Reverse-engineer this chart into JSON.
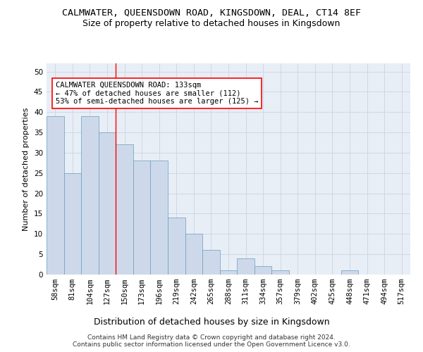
{
  "title": "CALMWATER, QUEENSDOWN ROAD, KINGSDOWN, DEAL, CT14 8EF",
  "subtitle": "Size of property relative to detached houses in Kingsdown",
  "xlabel": "Distribution of detached houses by size in Kingsdown",
  "ylabel": "Number of detached properties",
  "categories": [
    "58sqm",
    "81sqm",
    "104sqm",
    "127sqm",
    "150sqm",
    "173sqm",
    "196sqm",
    "219sqm",
    "242sqm",
    "265sqm",
    "288sqm",
    "311sqm",
    "334sqm",
    "357sqm",
    "379sqm",
    "402sqm",
    "425sqm",
    "448sqm",
    "471sqm",
    "494sqm",
    "517sqm"
  ],
  "values": [
    39,
    25,
    39,
    35,
    32,
    28,
    28,
    14,
    10,
    6,
    1,
    4,
    2,
    1,
    0,
    0,
    0,
    1,
    0,
    0,
    0
  ],
  "bar_color": "#cdd9ea",
  "bar_edge_color": "#6a9cc0",
  "grid_color": "#cdd8e8",
  "background_color": "#e8eef5",
  "ylim": [
    0,
    52
  ],
  "yticks": [
    0,
    5,
    10,
    15,
    20,
    25,
    30,
    35,
    40,
    45,
    50
  ],
  "red_line_x": 3.5,
  "annotation_text": "CALMWATER QUEENSDOWN ROAD: 133sqm\n← 47% of detached houses are smaller (112)\n53% of semi-detached houses are larger (125) →",
  "footer": "Contains HM Land Registry data © Crown copyright and database right 2024.\nContains public sector information licensed under the Open Government Licence v3.0.",
  "title_fontsize": 9.5,
  "subtitle_fontsize": 9,
  "xlabel_fontsize": 9,
  "ylabel_fontsize": 8,
  "tick_fontsize": 7.5,
  "annotation_fontsize": 7.5,
  "footer_fontsize": 6.5
}
